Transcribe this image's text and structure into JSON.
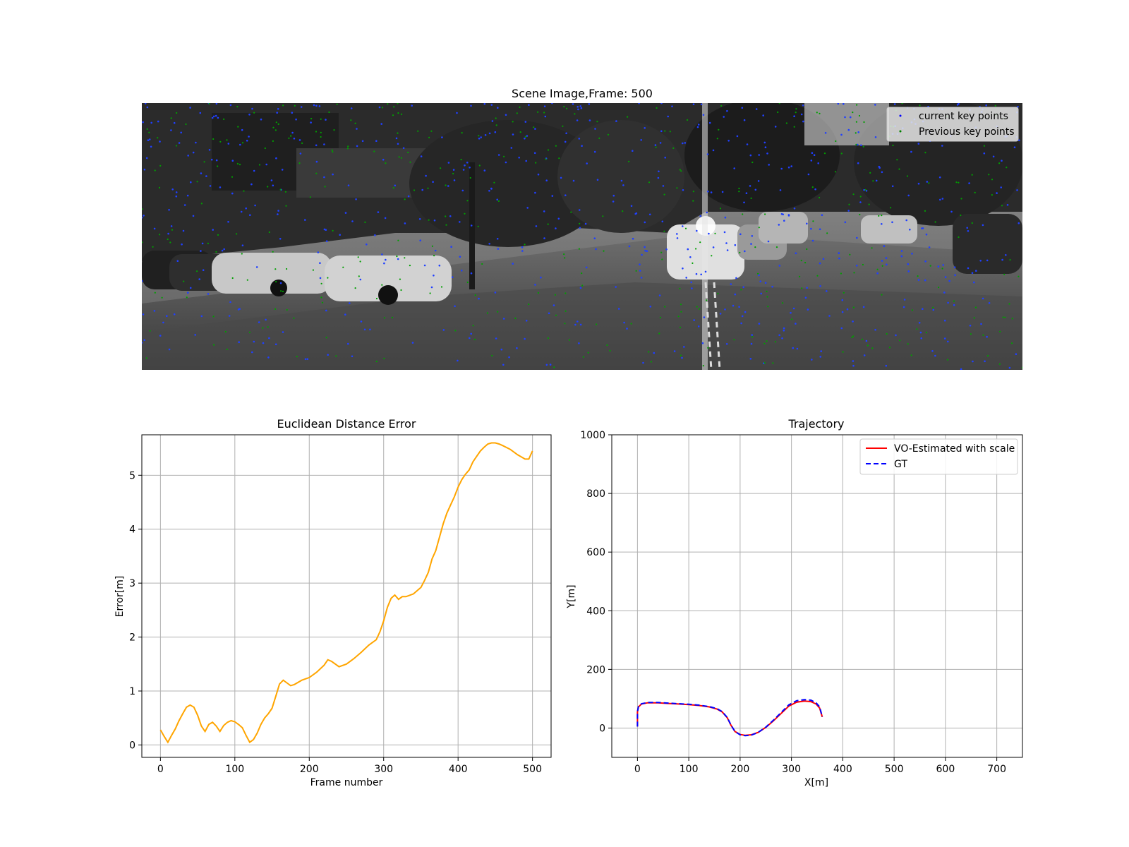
{
  "chart_data": [
    {
      "type": "image",
      "title": "Scene Image,Frame: 500",
      "legend": {
        "placement": "top-right",
        "entries": [
          {
            "label": "current key points",
            "color": "#0000ff"
          },
          {
            "label": "Previous key points",
            "color": "#008000"
          }
        ]
      }
    },
    {
      "type": "line",
      "title": "Euclidean Distance Error",
      "xlabel": "Frame number",
      "ylabel": "Error[m]",
      "xlim": [
        -25,
        525
      ],
      "ylim": [
        -0.23,
        5.75
      ],
      "xticks": [
        0,
        100,
        200,
        300,
        400,
        500
      ],
      "yticks": [
        0,
        1,
        2,
        3,
        4,
        5
      ],
      "grid": true,
      "series": [
        {
          "color": "#ffa500",
          "x": [
            0,
            5,
            10,
            15,
            20,
            25,
            30,
            35,
            40,
            45,
            50,
            55,
            60,
            65,
            70,
            75,
            80,
            85,
            90,
            95,
            100,
            105,
            110,
            115,
            120,
            125,
            130,
            135,
            140,
            145,
            150,
            155,
            160,
            165,
            170,
            175,
            180,
            190,
            200,
            210,
            220,
            225,
            230,
            240,
            250,
            260,
            270,
            280,
            285,
            290,
            295,
            300,
            305,
            310,
            315,
            320,
            325,
            330,
            340,
            350,
            355,
            360,
            365,
            370,
            375,
            380,
            385,
            390,
            395,
            400,
            405,
            410,
            415,
            420,
            425,
            430,
            435,
            440,
            445,
            450,
            455,
            460,
            470,
            480,
            490,
            495,
            500
          ],
          "y": [
            0.28,
            0.16,
            0.05,
            0.18,
            0.3,
            0.45,
            0.58,
            0.7,
            0.74,
            0.7,
            0.55,
            0.35,
            0.25,
            0.38,
            0.42,
            0.35,
            0.25,
            0.36,
            0.42,
            0.45,
            0.43,
            0.38,
            0.32,
            0.18,
            0.05,
            0.1,
            0.22,
            0.38,
            0.5,
            0.58,
            0.68,
            0.9,
            1.13,
            1.2,
            1.15,
            1.1,
            1.12,
            1.2,
            1.25,
            1.35,
            1.48,
            1.58,
            1.55,
            1.45,
            1.5,
            1.6,
            1.72,
            1.85,
            1.9,
            1.95,
            2.1,
            2.3,
            2.55,
            2.72,
            2.78,
            2.7,
            2.75,
            2.75,
            2.8,
            2.92,
            3.05,
            3.2,
            3.45,
            3.6,
            3.85,
            4.1,
            4.3,
            4.45,
            4.6,
            4.78,
            4.92,
            5.02,
            5.1,
            5.25,
            5.35,
            5.45,
            5.52,
            5.58,
            5.6,
            5.6,
            5.58,
            5.55,
            5.48,
            5.38,
            5.3,
            5.3,
            5.45
          ]
        }
      ]
    },
    {
      "type": "line",
      "title": "Trajectory",
      "xlabel": "X[m]",
      "ylabel": "Y[m]",
      "xlim": [
        -50,
        750
      ],
      "ylim": [
        -100,
        1000
      ],
      "xticks": [
        0,
        100,
        200,
        300,
        400,
        500,
        600,
        700
      ],
      "yticks": [
        0,
        200,
        400,
        600,
        800,
        1000
      ],
      "grid": true,
      "legend": "top-right",
      "series": [
        {
          "name": "VO-Estimated with scale",
          "color": "#ff0000",
          "style": "solid",
          "x": [
            0,
            0,
            2,
            8,
            20,
            40,
            60,
            80,
            100,
            120,
            140,
            155,
            165,
            175,
            182,
            190,
            200,
            210,
            222,
            235,
            250,
            265,
            280,
            295,
            310,
            325,
            338,
            348,
            355,
            358,
            360
          ],
          "y": [
            5,
            55,
            72,
            82,
            86,
            86,
            84,
            82,
            80,
            77,
            72,
            65,
            55,
            35,
            10,
            -12,
            -22,
            -25,
            -23,
            -15,
            2,
            25,
            50,
            75,
            88,
            92,
            90,
            82,
            68,
            50,
            38
          ]
        },
        {
          "name": "GT",
          "color": "#0000ff",
          "style": "dashed",
          "x": [
            0,
            0,
            2,
            8,
            20,
            40,
            60,
            80,
            100,
            120,
            140,
            155,
            165,
            175,
            182,
            190,
            200,
            210,
            222,
            235,
            250,
            265,
            280,
            295,
            310,
            325,
            338,
            348,
            355,
            358,
            360
          ],
          "y": [
            5,
            56,
            73,
            83,
            87,
            87,
            85,
            83,
            81,
            78,
            73,
            66,
            56,
            36,
            11,
            -12,
            -23,
            -26,
            -24,
            -15,
            3,
            27,
            53,
            79,
            93,
            97,
            95,
            86,
            72,
            52,
            38
          ]
        }
      ]
    }
  ]
}
